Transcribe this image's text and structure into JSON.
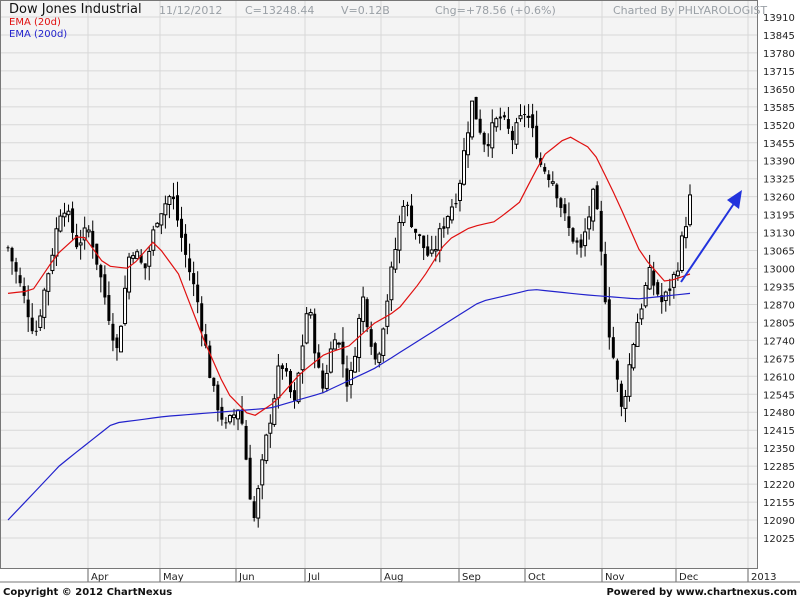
{
  "header": {
    "symbol": "Dow Jones Industrial",
    "date": "11/12/2012",
    "close": "C=13248.44",
    "volume": "V=0.12B",
    "change": "Chg=+78.56 (+0.6%)",
    "charted_by": "Charted By PHLYAROLOGIST"
  },
  "legend": [
    {
      "label": "EMA (20d)",
      "color": "#e01010"
    },
    {
      "label": "EMA (200d)",
      "color": "#2222cc"
    }
  ],
  "footer": {
    "copyright": "Copyright © 2012 ChartNexus",
    "powered": "Powered by www.chartnexus.com"
  },
  "colors": {
    "plot_bg": "#f4f4f4",
    "grid": "#d8d8d8",
    "price_bars": "#000000",
    "ema20": "#e01010",
    "ema200": "#2222cc",
    "arrow": "#2233dd"
  },
  "chart_data": {
    "type": "candlestick",
    "title": "Dow Jones Industrial",
    "axis_position": "right",
    "grid": true,
    "ylim": [
      11990,
      13940
    ],
    "y_ticks": [
      12025,
      12090,
      12155,
      12220,
      12285,
      12350,
      12415,
      12480,
      12545,
      12610,
      12675,
      12740,
      12805,
      12870,
      12935,
      13000,
      13065,
      13130,
      13195,
      13260,
      13325,
      13390,
      13455,
      13520,
      13585,
      13650,
      13715,
      13780,
      13845,
      13910
    ],
    "x_labels": [
      "Apr",
      "May",
      "Jun",
      "Jul",
      "Aug",
      "Sep",
      "Oct",
      "Nov",
      "Dec",
      "2013"
    ],
    "close_path": [
      13075,
      12920,
      12760,
      13000,
      13250,
      13090,
      13140,
      12920,
      12700,
      13090,
      12990,
      13200,
      13270,
      13050,
      12860,
      12560,
      12420,
      12510,
      12080,
      12400,
      12670,
      12500,
      12880,
      12550,
      12780,
      12560,
      12900,
      12650,
      12950,
      13250,
      13120,
      13030,
      13170,
      13280,
      13600,
      13450,
      13550,
      13470,
      13580,
      13380,
      13320,
      13150,
      13060,
      13280,
      12800,
      12480,
      12780,
      12980,
      12870,
      12990,
      13250
    ],
    "ema20_path": [
      12910,
      12920,
      13050,
      13130,
      13010,
      13000,
      13100,
      12980,
      12750,
      12550,
      12460,
      12520,
      12620,
      12690,
      12720,
      12800,
      12850,
      12960,
      13100,
      13150,
      13170,
      13240,
      13410,
      13480,
      13430,
      13250,
      13050,
      12950,
      12980
    ],
    "ema200_path": [
      12090,
      12290,
      12440,
      12465,
      12480,
      12495,
      12550,
      12640,
      12760,
      12880,
      12925,
      12905,
      12890,
      12910
    ],
    "annotation": {
      "type": "arrow",
      "direction": "up",
      "color": "#2233dd"
    }
  }
}
